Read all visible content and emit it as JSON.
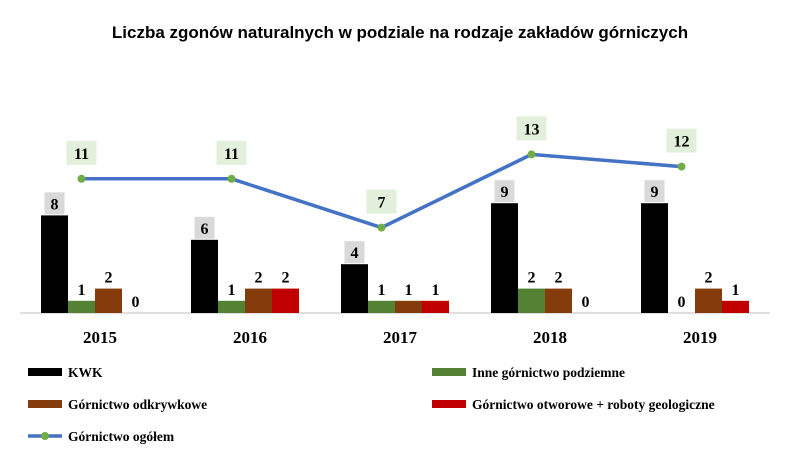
{
  "chart_data": {
    "type": "bar",
    "title": "Liczba zgonów naturalnych w podziale na rodzaje zakładów górniczych",
    "categories": [
      "2015",
      "2016",
      "2017",
      "2018",
      "2019"
    ],
    "series": [
      {
        "name": "KWK",
        "values": [
          8,
          6,
          4,
          9,
          9
        ],
        "color": "#000000",
        "label_bg": "#d9d9d9"
      },
      {
        "name": "Inne górnictwo podziemne",
        "values": [
          1,
          1,
          1,
          2,
          0
        ],
        "color": "#548235",
        "label_bg": ""
      },
      {
        "name": "Górnictwo odkrywkowe",
        "values": [
          2,
          2,
          1,
          2,
          2
        ],
        "color": "#843c0c",
        "label_bg": ""
      },
      {
        "name": "Górnictwo otworowe + roboty geologiczne",
        "values": [
          0,
          2,
          1,
          0,
          1
        ],
        "color": "#c00000",
        "label_bg": ""
      }
    ],
    "line_series": {
      "name": "Górnictwo ogółem",
      "values": [
        11,
        11,
        7,
        13,
        12
      ],
      "color": "#4472c4",
      "marker_color": "#70ad47",
      "label_bg": "#e2efda"
    },
    "ylim": [
      0,
      14
    ],
    "grid": false,
    "legend_position": "bottom"
  }
}
